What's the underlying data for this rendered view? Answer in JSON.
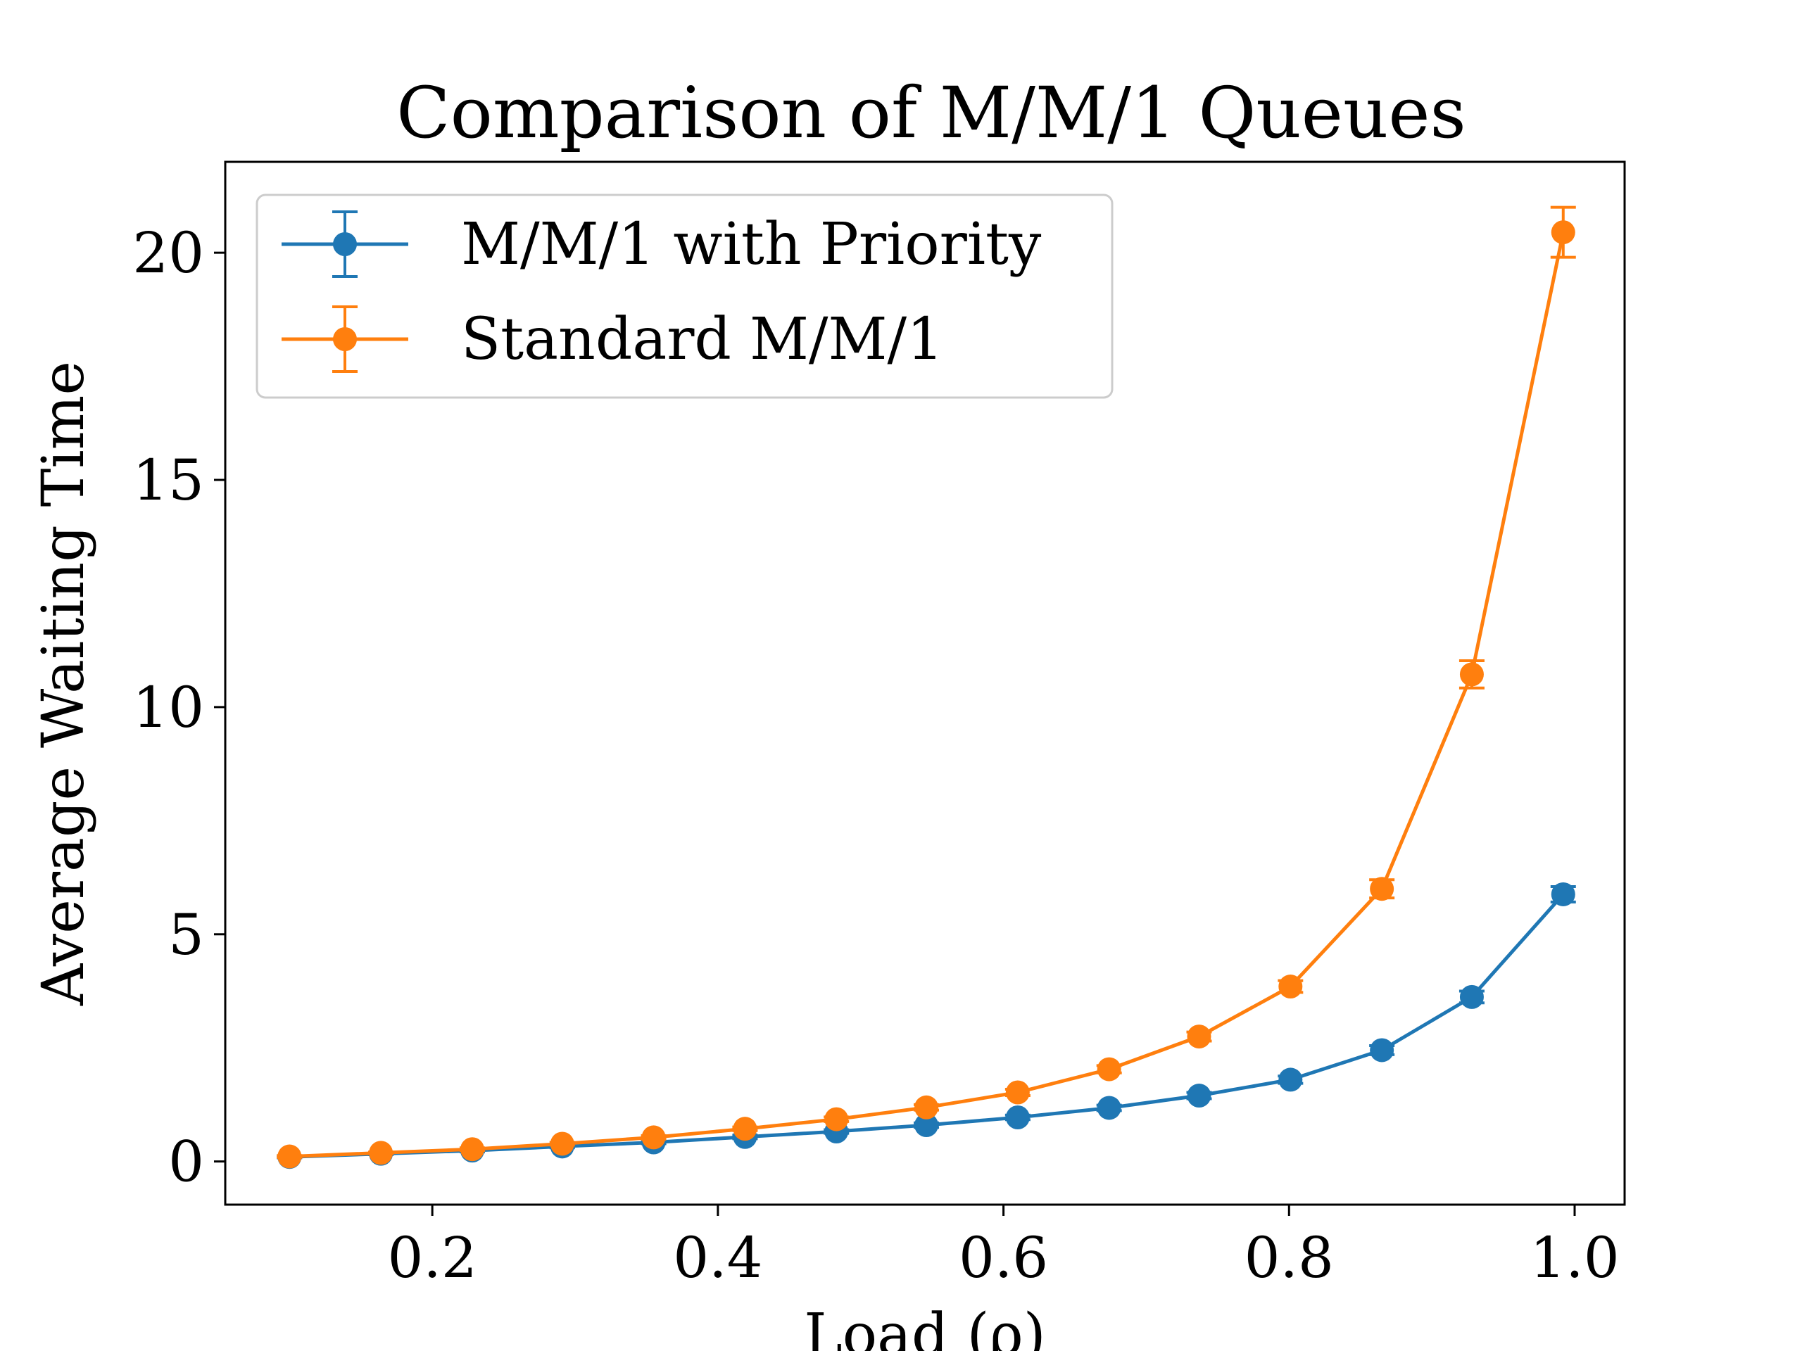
{
  "chart_data": {
    "type": "line",
    "title": "Comparison of M/M/1 Queues",
    "xlabel": "Load (ρ)",
    "ylabel": "Average Waiting Time",
    "xlim": [
      0.055,
      1.035
    ],
    "ylim": [
      -0.95,
      22.0
    ],
    "xticks": [
      0.2,
      0.4,
      0.6,
      0.8,
      1.0
    ],
    "xtick_labels": [
      "0.2",
      "0.4",
      "0.6",
      "0.8",
      "1.0"
    ],
    "yticks": [
      0,
      5,
      10,
      15,
      20
    ],
    "ytick_labels": [
      "0",
      "5",
      "10",
      "15",
      "20"
    ],
    "grid": false,
    "legend_position": "top-left",
    "x": [
      0.1,
      0.164,
      0.228,
      0.291,
      0.355,
      0.419,
      0.483,
      0.546,
      0.61,
      0.674,
      0.737,
      0.801,
      0.865,
      0.928,
      0.992
    ],
    "series": [
      {
        "name": "M/M/1 with Priority",
        "color": "#1f77b4",
        "values": [
          0.1,
          0.17,
          0.24,
          0.33,
          0.42,
          0.54,
          0.66,
          0.8,
          0.97,
          1.18,
          1.45,
          1.8,
          2.45,
          3.62,
          5.88
        ],
        "errors": [
          0.02,
          0.02,
          0.03,
          0.03,
          0.03,
          0.04,
          0.04,
          0.05,
          0.05,
          0.06,
          0.07,
          0.08,
          0.1,
          0.13,
          0.17
        ]
      },
      {
        "name": "Standard M/M/1",
        "color": "#ff7f0e",
        "values": [
          0.11,
          0.19,
          0.27,
          0.39,
          0.53,
          0.72,
          0.93,
          1.19,
          1.52,
          2.03,
          2.75,
          3.85,
          6.0,
          10.72,
          20.45
        ],
        "errors": [
          0.02,
          0.02,
          0.03,
          0.03,
          0.04,
          0.04,
          0.05,
          0.06,
          0.07,
          0.08,
          0.1,
          0.13,
          0.2,
          0.3,
          0.55
        ]
      }
    ]
  }
}
